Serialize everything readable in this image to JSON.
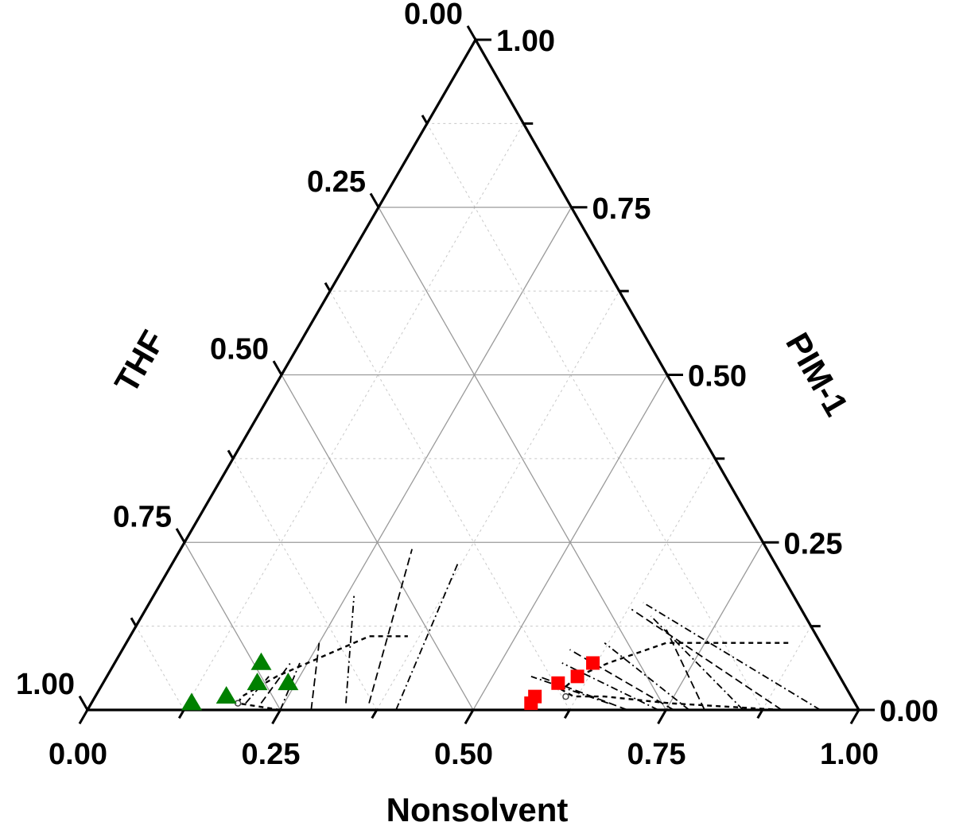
{
  "chart_data": {
    "type": "scatter",
    "subtype": "ternary",
    "title": "",
    "axes": {
      "nonsolvent": {
        "label": "Nonsolvent",
        "ticks": [
          "0.00",
          "0.25",
          "0.50",
          "0.75",
          "1.00"
        ]
      },
      "thf": {
        "label": "THF",
        "ticks": [
          "0.00",
          "0.25",
          "0.50",
          "0.75",
          "1.00"
        ]
      },
      "pim1": {
        "label": "PIM-1",
        "ticks": [
          "0.00",
          "0.25",
          "0.50",
          "0.75",
          "1.00"
        ]
      }
    },
    "grid": true,
    "series": [
      {
        "marker": "triangle",
        "color": "#008000",
        "points": [
          {
            "nonsolvent": 0.19,
            "thf": 0.74,
            "pim1": 0.07
          },
          {
            "nonsolvent": 0.24,
            "thf": 0.72,
            "pim1": 0.04
          },
          {
            "nonsolvent": 0.2,
            "thf": 0.76,
            "pim1": 0.04
          },
          {
            "nonsolvent": 0.17,
            "thf": 0.81,
            "pim1": 0.02
          },
          {
            "nonsolvent": 0.13,
            "thf": 0.86,
            "pim1": 0.01
          }
        ]
      },
      {
        "marker": "square",
        "color": "#ff0000",
        "points": [
          {
            "nonsolvent": 0.62,
            "thf": 0.31,
            "pim1": 0.07
          },
          {
            "nonsolvent": 0.61,
            "thf": 0.34,
            "pim1": 0.05
          },
          {
            "nonsolvent": 0.59,
            "thf": 0.37,
            "pim1": 0.04
          },
          {
            "nonsolvent": 0.57,
            "thf": 0.41,
            "pim1": 0.02
          },
          {
            "nonsolvent": 0.57,
            "thf": 0.42,
            "pim1": 0.01
          }
        ]
      }
    ],
    "binodal_curves": [
      {
        "style": "dashed",
        "points": [
          {
            "nonsolvent": 0.9,
            "thf": 0.1,
            "pim1": 0.0
          },
          {
            "nonsolvent": 0.75,
            "thf": 0.24,
            "pim1": 0.01
          },
          {
            "nonsolvent": 0.66,
            "thf": 0.32,
            "pim1": 0.02
          },
          {
            "nonsolvent": 0.62,
            "thf": 0.36,
            "pim1": 0.02
          },
          {
            "nonsolvent": 0.6,
            "thf": 0.37,
            "pim1": 0.03
          },
          {
            "nonsolvent": 0.61,
            "thf": 0.34,
            "pim1": 0.05
          },
          {
            "nonsolvent": 0.64,
            "thf": 0.29,
            "pim1": 0.07
          },
          {
            "nonsolvent": 0.7,
            "thf": 0.2,
            "pim1": 0.1
          },
          {
            "nonsolvent": 0.75,
            "thf": 0.15,
            "pim1": 0.1
          },
          {
            "nonsolvent": 0.86,
            "thf": 0.04,
            "pim1": 0.1
          }
        ]
      },
      {
        "style": "dashed",
        "points": [
          {
            "nonsolvent": 0.5,
            "thf": 0.5,
            "pim1": 0.0
          },
          {
            "nonsolvent": 0.35,
            "thf": 0.65,
            "pim1": 0.0
          },
          {
            "nonsolvent": 0.25,
            "thf": 0.75,
            "pim1": 0.0
          },
          {
            "nonsolvent": 0.19,
            "thf": 0.8,
            "pim1": 0.01
          },
          {
            "nonsolvent": 0.19,
            "thf": 0.79,
            "pim1": 0.02
          },
          {
            "nonsolvent": 0.22,
            "thf": 0.73,
            "pim1": 0.05
          },
          {
            "nonsolvent": 0.25,
            "thf": 0.68,
            "pim1": 0.07
          },
          {
            "nonsolvent": 0.31,
            "thf": 0.58,
            "pim1": 0.11
          },
          {
            "nonsolvent": 0.36,
            "thf": 0.53,
            "pim1": 0.11
          }
        ]
      }
    ],
    "critical_points": [
      {
        "nonsolvent": 0.61,
        "thf": 0.37,
        "pim1": 0.02
      },
      {
        "nonsolvent": 0.19,
        "thf": 0.8,
        "pim1": 0.01
      }
    ],
    "tie_lines": [
      {
        "style": "dashdot",
        "from": {
          "nonsolvent": 0.95,
          "thf": 0.05,
          "pim1": 0.0
        },
        "to": {
          "nonsolvent": 0.64,
          "thf": 0.2,
          "pim1": 0.16
        }
      },
      {
        "style": "dashed",
        "from": {
          "nonsolvent": 0.9,
          "thf": 0.1,
          "pim1": 0.0
        },
        "to": {
          "nonsolvent": 0.63,
          "thf": 0.22,
          "pim1": 0.15
        }
      },
      {
        "style": "dashdot",
        "from": {
          "nonsolvent": 0.85,
          "thf": 0.15,
          "pim1": 0.0
        },
        "to": {
          "nonsolvent": 0.66,
          "thf": 0.2,
          "pim1": 0.14
        }
      },
      {
        "style": "dashed",
        "from": {
          "nonsolvent": 0.8,
          "thf": 0.2,
          "pim1": 0.0
        },
        "to": {
          "nonsolvent": 0.69,
          "thf": 0.19,
          "pim1": 0.12
        }
      },
      {
        "style": "dashdot",
        "from": {
          "nonsolvent": 0.78,
          "thf": 0.22,
          "pim1": 0.0
        },
        "to": {
          "nonsolvent": 0.62,
          "thf": 0.28,
          "pim1": 0.1
        }
      },
      {
        "style": "dashed",
        "from": {
          "nonsolvent": 0.76,
          "thf": 0.24,
          "pim1": 0.0
        },
        "to": {
          "nonsolvent": 0.58,
          "thf": 0.33,
          "pim1": 0.09
        }
      },
      {
        "style": "dashdot",
        "from": {
          "nonsolvent": 0.74,
          "thf": 0.26,
          "pim1": 0.0
        },
        "to": {
          "nonsolvent": 0.58,
          "thf": 0.35,
          "pim1": 0.07
        }
      },
      {
        "style": "dashed",
        "from": {
          "nonsolvent": 0.7,
          "thf": 0.3,
          "pim1": 0.0
        },
        "to": {
          "nonsolvent": 0.56,
          "thf": 0.39,
          "pim1": 0.05
        }
      },
      {
        "style": "dashdot",
        "from": {
          "nonsolvent": 0.67,
          "thf": 0.32,
          "pim1": 0.01
        },
        "to": {
          "nonsolvent": 0.55,
          "thf": 0.4,
          "pim1": 0.05
        }
      },
      {
        "style": "dashdot",
        "from": {
          "nonsolvent": 0.4,
          "thf": 0.6,
          "pim1": 0.0
        },
        "to": {
          "nonsolvent": 0.37,
          "thf": 0.41,
          "pim1": 0.22
        }
      },
      {
        "style": "dashed",
        "from": {
          "nonsolvent": 0.36,
          "thf": 0.63,
          "pim1": 0.01
        },
        "to": {
          "nonsolvent": 0.3,
          "thf": 0.46,
          "pim1": 0.24
        }
      },
      {
        "style": "dashdot",
        "from": {
          "nonsolvent": 0.33,
          "thf": 0.66,
          "pim1": 0.01
        },
        "to": {
          "nonsolvent": 0.26,
          "thf": 0.57,
          "pim1": 0.17
        }
      },
      {
        "style": "dashed",
        "from": {
          "nonsolvent": 0.29,
          "thf": 0.71,
          "pim1": 0.0
        },
        "to": {
          "nonsolvent": 0.25,
          "thf": 0.65,
          "pim1": 0.1
        }
      },
      {
        "style": "dashdot",
        "from": {
          "nonsolvent": 0.25,
          "thf": 0.75,
          "pim1": 0.0
        },
        "to": {
          "nonsolvent": 0.24,
          "thf": 0.69,
          "pim1": 0.07
        }
      },
      {
        "style": "dashed",
        "from": {
          "nonsolvent": 0.22,
          "thf": 0.77,
          "pim1": 0.01
        },
        "to": {
          "nonsolvent": 0.23,
          "thf": 0.71,
          "pim1": 0.07
        }
      },
      {
        "style": "dashdot",
        "from": {
          "nonsolvent": 0.2,
          "thf": 0.79,
          "pim1": 0.01
        },
        "to": {
          "nonsolvent": 0.21,
          "thf": 0.74,
          "pim1": 0.05
        }
      }
    ]
  }
}
